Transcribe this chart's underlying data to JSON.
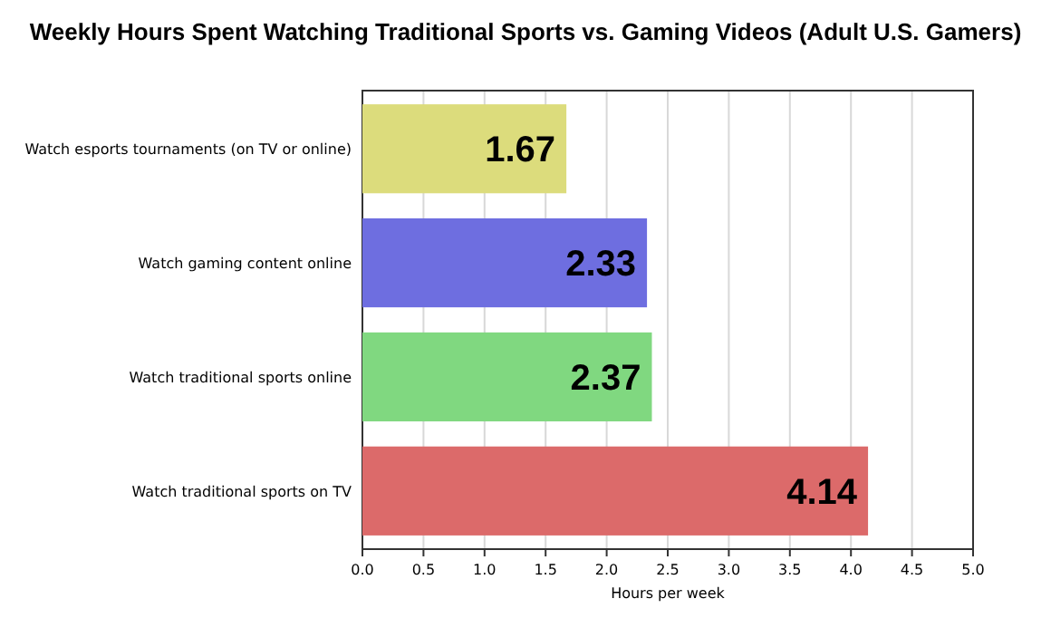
{
  "chart_data": {
    "type": "bar",
    "orientation": "horizontal",
    "title": "Weekly Hours Spent Watching Traditional Sports vs. Gaming Videos (Adult U.S. Gamers)",
    "xlabel": "Hours per week",
    "categories": [
      "Watch esports tournaments (on TV or online)",
      "Watch gaming content online",
      "Watch traditional sports online",
      "Watch traditional sports on TV"
    ],
    "values": [
      1.67,
      2.33,
      2.37,
      4.14
    ],
    "colors": [
      "#dcdc7c",
      "#6e6ee0",
      "#80d880",
      "#dc6a6a"
    ],
    "xlim": [
      0,
      5
    ],
    "xticks": [
      {
        "value": 0,
        "label": "0.0"
      },
      {
        "value": 0.5,
        "label": "0.5"
      },
      {
        "value": 1,
        "label": "1.0"
      },
      {
        "value": 1.5,
        "label": "1.5"
      },
      {
        "value": 2,
        "label": "2.0"
      },
      {
        "value": 2.5,
        "label": "2.5"
      },
      {
        "value": 3,
        "label": "3.0"
      },
      {
        "value": 3.5,
        "label": "3.5"
      },
      {
        "value": 4,
        "label": "4.0"
      },
      {
        "value": 4.5,
        "label": "4.5"
      },
      {
        "value": 5,
        "label": "5.0"
      }
    ],
    "grid": "x",
    "data_labels": true
  }
}
